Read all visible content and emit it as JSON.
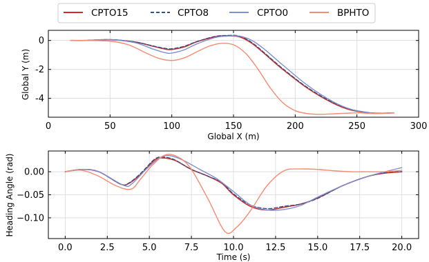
{
  "legend": {
    "placement": "top-center",
    "entries": [
      {
        "label": "CPTO15",
        "color": "#d62728",
        "dash": "solid"
      },
      {
        "label": "CPTO8",
        "color": "#2f4f7f",
        "dash": "dashed"
      },
      {
        "label": "CPTO0",
        "color": "#7b8fd1",
        "dash": "solid"
      },
      {
        "label": "BPHTO",
        "color": "#f58a6e",
        "dash": "solid"
      }
    ]
  },
  "chart_data": [
    {
      "type": "line",
      "title": "",
      "xlabel": "Global X (m)",
      "ylabel": "Global Y (m)",
      "xlim": [
        0,
        300
      ],
      "ylim": [
        -5.3,
        0.7
      ],
      "xticks": [
        0,
        50,
        100,
        150,
        200,
        250,
        300
      ],
      "yticks": [
        0,
        -2,
        -4
      ],
      "grid": true,
      "series": [
        {
          "name": "CPTO15",
          "color": "#d62728",
          "dash": "solid",
          "width": 1.6,
          "points": [
            [
              18,
              0
            ],
            [
              30,
              0
            ],
            [
              50,
              0.05
            ],
            [
              70,
              -0.1
            ],
            [
              85,
              -0.4
            ],
            [
              95,
              -0.6
            ],
            [
              100,
              -0.62
            ],
            [
              110,
              -0.45
            ],
            [
              120,
              -0.1
            ],
            [
              135,
              0.25
            ],
            [
              145,
              0.32
            ],
            [
              155,
              0.25
            ],
            [
              165,
              -0.2
            ],
            [
              175,
              -0.9
            ],
            [
              190,
              -2.0
            ],
            [
              210,
              -3.3
            ],
            [
              230,
              -4.3
            ],
            [
              245,
              -4.8
            ],
            [
              260,
              -5.0
            ],
            [
              270,
              -5.03
            ],
            [
              280,
              -5.0
            ]
          ]
        },
        {
          "name": "CPTO8",
          "color": "#2f4f7f",
          "dash": "dashed",
          "width": 1.3,
          "points": [
            [
              18,
              0
            ],
            [
              30,
              0
            ],
            [
              50,
              0.06
            ],
            [
              70,
              -0.1
            ],
            [
              85,
              -0.38
            ],
            [
              95,
              -0.55
            ],
            [
              100,
              -0.57
            ],
            [
              110,
              -0.4
            ],
            [
              120,
              -0.08
            ],
            [
              135,
              0.28
            ],
            [
              145,
              0.35
            ],
            [
              155,
              0.3
            ],
            [
              165,
              -0.15
            ],
            [
              175,
              -0.85
            ],
            [
              190,
              -1.95
            ],
            [
              210,
              -3.25
            ],
            [
              230,
              -4.25
            ],
            [
              245,
              -4.75
            ],
            [
              260,
              -4.98
            ],
            [
              270,
              -5.02
            ],
            [
              280,
              -5.0
            ]
          ]
        },
        {
          "name": "CPTO0",
          "color": "#7b8fd1",
          "dash": "solid",
          "width": 1.4,
          "points": [
            [
              18,
              0
            ],
            [
              30,
              0
            ],
            [
              50,
              0.05
            ],
            [
              70,
              -0.15
            ],
            [
              85,
              -0.6
            ],
            [
              95,
              -0.85
            ],
            [
              100,
              -0.87
            ],
            [
              110,
              -0.65
            ],
            [
              120,
              -0.25
            ],
            [
              135,
              0.2
            ],
            [
              145,
              0.3
            ],
            [
              155,
              0.3
            ],
            [
              165,
              0.0
            ],
            [
              175,
              -0.6
            ],
            [
              190,
              -1.7
            ],
            [
              210,
              -3.1
            ],
            [
              230,
              -4.2
            ],
            [
              245,
              -4.75
            ],
            [
              260,
              -4.98
            ],
            [
              270,
              -5.02
            ],
            [
              280,
              -5.0
            ]
          ]
        },
        {
          "name": "BPHTO",
          "color": "#f58a6e",
          "dash": "solid",
          "width": 1.4,
          "points": [
            [
              18,
              0
            ],
            [
              30,
              0
            ],
            [
              50,
              -0.05
            ],
            [
              65,
              -0.3
            ],
            [
              80,
              -0.9
            ],
            [
              90,
              -1.25
            ],
            [
              100,
              -1.38
            ],
            [
              110,
              -1.2
            ],
            [
              120,
              -0.8
            ],
            [
              130,
              -0.4
            ],
            [
              140,
              -0.2
            ],
            [
              150,
              -0.3
            ],
            [
              160,
              -0.9
            ],
            [
              170,
              -2.0
            ],
            [
              180,
              -3.3
            ],
            [
              190,
              -4.3
            ],
            [
              200,
              -4.85
            ],
            [
              210,
              -5.05
            ],
            [
              220,
              -5.1
            ],
            [
              235,
              -5.05
            ],
            [
              250,
              -5.0
            ],
            [
              265,
              -5.05
            ],
            [
              280,
              -5.0
            ]
          ]
        }
      ]
    },
    {
      "type": "line",
      "title": "",
      "xlabel": "Time (s)",
      "ylabel": "Heading Angle (rad)",
      "xlim": [
        -1,
        21
      ],
      "ylim": [
        -0.145,
        0.045
      ],
      "xticks": [
        0.0,
        2.5,
        5.0,
        7.5,
        10.0,
        12.5,
        15.0,
        17.5,
        20.0
      ],
      "xtick_labels": [
        "0.0",
        "2.5",
        "5.0",
        "7.5",
        "10.0",
        "12.5",
        "15.0",
        "17.5",
        "20.0"
      ],
      "yticks": [
        0.0,
        -0.05,
        -0.1
      ],
      "ytick_labels": [
        "0.00",
        "−0.05",
        "−0.10"
      ],
      "grid": true,
      "series": [
        {
          "name": "CPTO15",
          "color": "#d62728",
          "dash": "solid",
          "width": 1.6,
          "points": [
            [
              0,
              0
            ],
            [
              1,
              0.005
            ],
            [
              2,
              0.0
            ],
            [
              3.3,
              -0.027
            ],
            [
              3.8,
              -0.025
            ],
            [
              4.5,
              -0.005
            ],
            [
              5.3,
              0.025
            ],
            [
              5.8,
              0.03
            ],
            [
              6.5,
              0.025
            ],
            [
              7.5,
              0.005
            ],
            [
              8.5,
              -0.01
            ],
            [
              9.3,
              -0.025
            ],
            [
              10,
              -0.05
            ],
            [
              11,
              -0.075
            ],
            [
              12,
              -0.083
            ],
            [
              13,
              -0.077
            ],
            [
              14,
              -0.07
            ],
            [
              15,
              -0.057
            ],
            [
              16.5,
              -0.03
            ],
            [
              18,
              -0.01
            ],
            [
              19,
              -0.003
            ],
            [
              20,
              0.0
            ]
          ]
        },
        {
          "name": "CPTO8",
          "color": "#2f4f7f",
          "dash": "dashed",
          "width": 1.3,
          "points": [
            [
              0,
              0
            ],
            [
              1,
              0.005
            ],
            [
              2,
              0.0
            ],
            [
              3.3,
              -0.027
            ],
            [
              3.8,
              -0.024
            ],
            [
              4.5,
              -0.003
            ],
            [
              5.3,
              0.027
            ],
            [
              5.8,
              0.032
            ],
            [
              6.5,
              0.026
            ],
            [
              7.5,
              0.005
            ],
            [
              8.5,
              -0.01
            ],
            [
              9.3,
              -0.023
            ],
            [
              10,
              -0.048
            ],
            [
              11,
              -0.072
            ],
            [
              12,
              -0.08
            ],
            [
              13,
              -0.075
            ],
            [
              14,
              -0.07
            ],
            [
              15,
              -0.058
            ],
            [
              16.5,
              -0.03
            ],
            [
              18,
              -0.01
            ],
            [
              19,
              -0.002
            ],
            [
              20,
              0.0
            ]
          ]
        },
        {
          "name": "CPTO0",
          "color": "#7b8fd1",
          "dash": "solid",
          "width": 1.4,
          "points": [
            [
              0,
              0
            ],
            [
              1,
              0.005
            ],
            [
              2,
              0.0
            ],
            [
              3.5,
              -0.03
            ],
            [
              4.0,
              -0.025
            ],
            [
              4.8,
              0.005
            ],
            [
              5.6,
              0.03
            ],
            [
              6.2,
              0.035
            ],
            [
              7.0,
              0.025
            ],
            [
              8.0,
              0.005
            ],
            [
              9.0,
              -0.015
            ],
            [
              10,
              -0.043
            ],
            [
              11,
              -0.072
            ],
            [
              12,
              -0.083
            ],
            [
              13,
              -0.082
            ],
            [
              14,
              -0.073
            ],
            [
              15,
              -0.055
            ],
            [
              16.5,
              -0.03
            ],
            [
              18,
              -0.01
            ],
            [
              19,
              0.0
            ],
            [
              20,
              0.009
            ]
          ]
        },
        {
          "name": "BPHTO",
          "color": "#f58a6e",
          "dash": "solid",
          "width": 1.4,
          "points": [
            [
              0,
              0
            ],
            [
              1,
              0.003
            ],
            [
              2,
              -0.01
            ],
            [
              3,
              -0.03
            ],
            [
              3.9,
              -0.038
            ],
            [
              4.5,
              -0.015
            ],
            [
              5.2,
              0.015
            ],
            [
              6.0,
              0.037
            ],
            [
              6.8,
              0.03
            ],
            [
              7.5,
              0.005
            ],
            [
              8.5,
              -0.06
            ],
            [
              9.5,
              -0.13
            ],
            [
              10.2,
              -0.12
            ],
            [
              11,
              -0.085
            ],
            [
              12,
              -0.03
            ],
            [
              13,
              0.002
            ],
            [
              14,
              0.006
            ],
            [
              15,
              0.005
            ],
            [
              16,
              0.002
            ],
            [
              17,
              0.0
            ],
            [
              18,
              0.0
            ],
            [
              19,
              0.0
            ],
            [
              20,
              0.003
            ]
          ]
        }
      ]
    }
  ]
}
